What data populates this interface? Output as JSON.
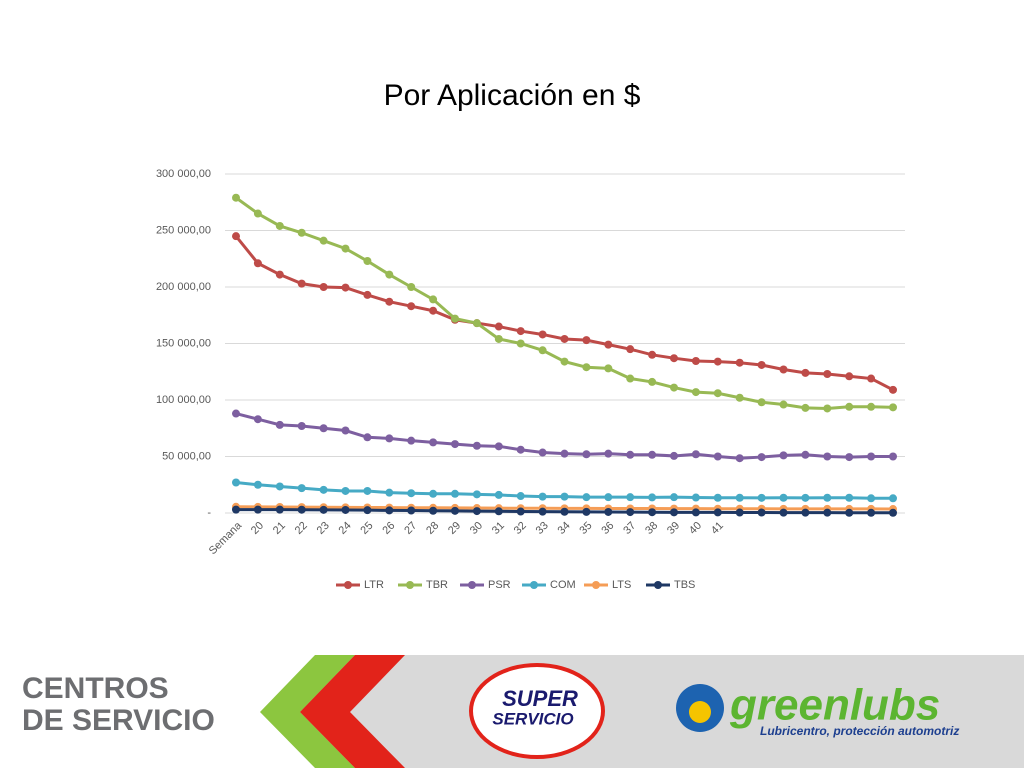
{
  "chart_data": {
    "type": "line",
    "title": "Por Aplicación en $",
    "categories": [
      "Semana",
      "20",
      "21",
      "22",
      "23",
      "24",
      "25",
      "26",
      "27",
      "28",
      "29",
      "30",
      "31",
      "32",
      "33",
      "34",
      "35",
      "36",
      "37",
      "38",
      "39",
      "40",
      "41",
      null,
      null,
      null,
      null,
      null,
      null,
      null,
      null
    ],
    "series": [
      {
        "name": "LTR",
        "color": "#be4b48",
        "values": [
          245000,
          221000,
          211000,
          203000,
          200000,
          199500,
          193000,
          187000,
          183000,
          179000,
          171000,
          168000,
          165000,
          161000,
          158000,
          154000,
          153000,
          149000,
          145000,
          140000,
          137000,
          134500,
          134000,
          133000,
          131000,
          127000,
          124000,
          123000,
          121000,
          119000,
          109000
        ]
      },
      {
        "name": "TBR",
        "color": "#98b954",
        "values": [
          279000,
          265000,
          254000,
          248000,
          241000,
          234000,
          223000,
          211000,
          200000,
          189000,
          172000,
          168000,
          154000,
          150000,
          144000,
          134000,
          129000,
          128000,
          119000,
          116000,
          111000,
          107000,
          106000,
          102000,
          98000,
          96000,
          93000,
          92500,
          94000,
          94000,
          93500
        ]
      },
      {
        "name": "PSR",
        "color": "#7d5fa0",
        "values": [
          88000,
          83000,
          78000,
          77000,
          75000,
          73000,
          67000,
          66000,
          64000,
          62500,
          61000,
          59500,
          59000,
          56000,
          53500,
          52500,
          52000,
          52500,
          51500,
          51500,
          50500,
          52000,
          50000,
          48500,
          49500,
          51000,
          51500,
          50000,
          49500,
          50000,
          50000
        ]
      },
      {
        "name": "COM",
        "color": "#46aac5",
        "values": [
          27000,
          25000,
          23500,
          22000,
          20500,
          19500,
          19500,
          18000,
          17500,
          17000,
          17000,
          16500,
          16000,
          15000,
          14500,
          14500,
          14000,
          14000,
          14000,
          13800,
          14000,
          13700,
          13500,
          13500,
          13400,
          13500,
          13400,
          13500,
          13500,
          13000,
          13000
        ]
      },
      {
        "name": "LTS",
        "color": "#f59d56",
        "values": [
          5500,
          5400,
          5300,
          5200,
          5100,
          5000,
          4900,
          4800,
          4700,
          4600,
          4500,
          4400,
          4300,
          4200,
          4200,
          4100,
          4100,
          4000,
          4000,
          4000,
          3900,
          3900,
          3800,
          3800,
          3800,
          3700,
          3700,
          3700,
          3600,
          3600,
          3500
        ]
      },
      {
        "name": "TBS",
        "color": "#1f3864",
        "values": [
          3000,
          3000,
          3000,
          2900,
          2800,
          2700,
          2500,
          2300,
          2200,
          2000,
          1900,
          1700,
          1500,
          1300,
          1200,
          1100,
          1000,
          900,
          800,
          700,
          600,
          500,
          500,
          400,
          400,
          300,
          300,
          300,
          200,
          200,
          200
        ]
      }
    ],
    "ylim": [
      0,
      300000
    ],
    "yticks": [
      {
        "value": 0,
        "label": "-"
      },
      {
        "value": 50000,
        "label": "50 000,00"
      },
      {
        "value": 100000,
        "label": "100 000,00"
      },
      {
        "value": 150000,
        "label": "150 000,00"
      },
      {
        "value": 200000,
        "label": "200 000,00"
      },
      {
        "value": 250000,
        "label": "250 000,00"
      },
      {
        "value": 300000,
        "label": "300 000,00"
      }
    ],
    "grid": true,
    "legend": "bottom"
  },
  "banner": {
    "left": [
      "CENTROS",
      "DE SERVICIO"
    ],
    "super": [
      "SUPER",
      "SERVICIO"
    ],
    "brand": "greenlubs",
    "tagline": "Lubricentro, protección automotriz"
  }
}
